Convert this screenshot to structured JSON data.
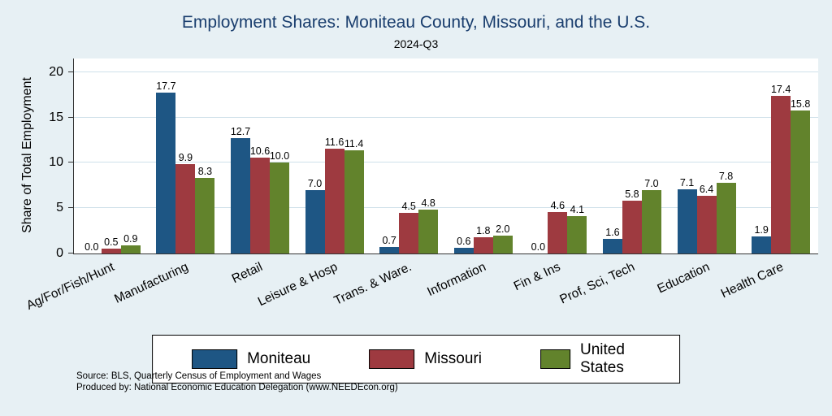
{
  "title": "Employment Shares: Moniteau County, Missouri, and the U.S.",
  "subtitle": "2024-Q3",
  "ylabel": "Share of Total Employment",
  "source_line1": "Source: BLS, Quarterly Census of Employment and Wages",
  "source_line2": "Produced by: National Economic Education Delegation (www.NEEDEcon.org)",
  "colors": {
    "background": "#e7f0f4",
    "plot_background": "#ffffff",
    "gridline": "#cfe0ea",
    "title": "#1a3e6e",
    "moniteau": "#1e5684",
    "missouri": "#9e3a40",
    "united_states": "#62832c"
  },
  "chart_data": {
    "type": "bar",
    "title": "Employment Shares: Moniteau County, Missouri, and the U.S.",
    "subtitle": "2024-Q3",
    "xlabel": "",
    "ylabel": "Share of Total Employment",
    "categories": [
      "Ag/For/Fish/Hunt",
      "Manufacturing",
      "Retail",
      "Leisure & Hosp",
      "Trans. & Ware.",
      "Information",
      "Fin & Ins",
      "Prof, Sci, Tech",
      "Education",
      "Health Care"
    ],
    "series": [
      {
        "name": "Moniteau",
        "color": "#1e5684",
        "values": [
          0.0,
          17.7,
          12.7,
          7.0,
          0.7,
          0.6,
          0.0,
          1.6,
          7.1,
          1.9
        ]
      },
      {
        "name": "Missouri",
        "color": "#9e3a40",
        "values": [
          0.5,
          9.9,
          10.6,
          11.6,
          4.5,
          1.8,
          4.6,
          5.8,
          6.4,
          17.4
        ]
      },
      {
        "name": "United States",
        "color": "#62832c",
        "values": [
          0.9,
          8.3,
          10.0,
          11.4,
          4.8,
          2.0,
          4.1,
          7.0,
          7.8,
          15.8
        ]
      }
    ],
    "yticks": [
      0,
      5,
      10,
      15,
      20
    ],
    "ylim": [
      0,
      21.5
    ],
    "grid": true,
    "legend_position": "bottom"
  }
}
